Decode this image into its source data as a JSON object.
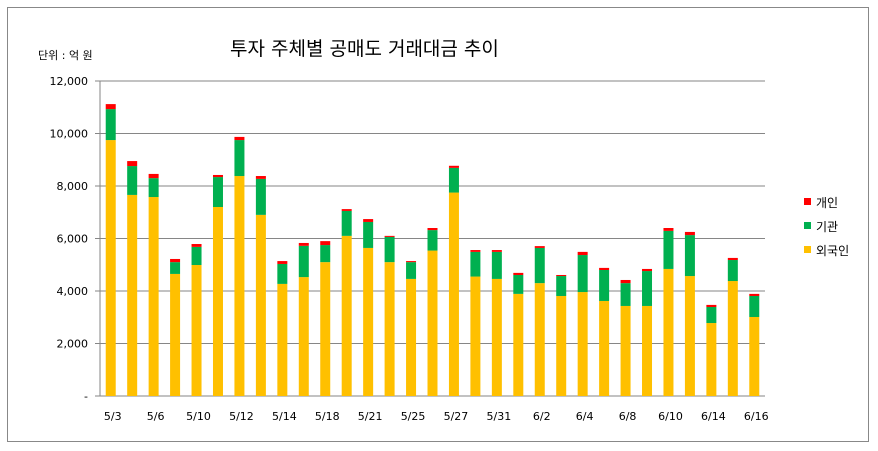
{
  "chart_data": {
    "type": "bar",
    "stacked": true,
    "title": "투자 주체별 공매도 거래대금 추이",
    "unit_label": "단위 : 억 원",
    "xlabel": "",
    "ylabel": "",
    "ylim": [
      0,
      12000
    ],
    "yticks": [
      0,
      2000,
      4000,
      6000,
      8000,
      10000,
      12000
    ],
    "ytick_labels": [
      "-",
      "2,000",
      "4,000",
      "6,000",
      "8,000",
      "10,000",
      "12,000"
    ],
    "grid": true,
    "legend_position": "right",
    "categories": [
      "5/3",
      "",
      "5/6",
      "",
      "5/10",
      "",
      "5/12",
      "",
      "5/14",
      "",
      "5/18",
      "",
      "5/21",
      "",
      "5/25",
      "",
      "5/27",
      "",
      "5/31",
      "",
      "6/2",
      "",
      "6/4",
      "",
      "6/8",
      "",
      "6/10",
      "",
      "6/14",
      "",
      "6/16"
    ],
    "series": [
      {
        "name": "외국인",
        "color": "#ffc000",
        "values": [
          9750,
          7660,
          7580,
          4650,
          4990,
          7200,
          8380,
          6900,
          4270,
          4530,
          5100,
          6100,
          5640,
          5100,
          4460,
          5540,
          7750,
          4550,
          4460,
          3890,
          4300,
          3810,
          3960,
          3620,
          3430,
          3430,
          4840,
          4570,
          2780,
          4380,
          3010
        ]
      },
      {
        "name": "기관",
        "color": "#00b050",
        "values": [
          1180,
          1100,
          720,
          450,
          690,
          1140,
          1370,
          1370,
          760,
          1190,
          650,
          950,
          990,
          960,
          640,
          780,
          940,
          940,
          1030,
          720,
          1340,
          760,
          1410,
          1180,
          870,
          1330,
          1450,
          1560,
          610,
          800,
          800
        ]
      },
      {
        "name": "개인",
        "color": "#ff0000",
        "values": [
          190,
          190,
          160,
          120,
          110,
          80,
          120,
          110,
          110,
          110,
          150,
          70,
          110,
          40,
          40,
          80,
          80,
          70,
          70,
          80,
          70,
          40,
          120,
          80,
          120,
          80,
          110,
          120,
          80,
          80,
          80
        ]
      }
    ],
    "legend_order": [
      "개인",
      "기관",
      "외국인"
    ]
  }
}
